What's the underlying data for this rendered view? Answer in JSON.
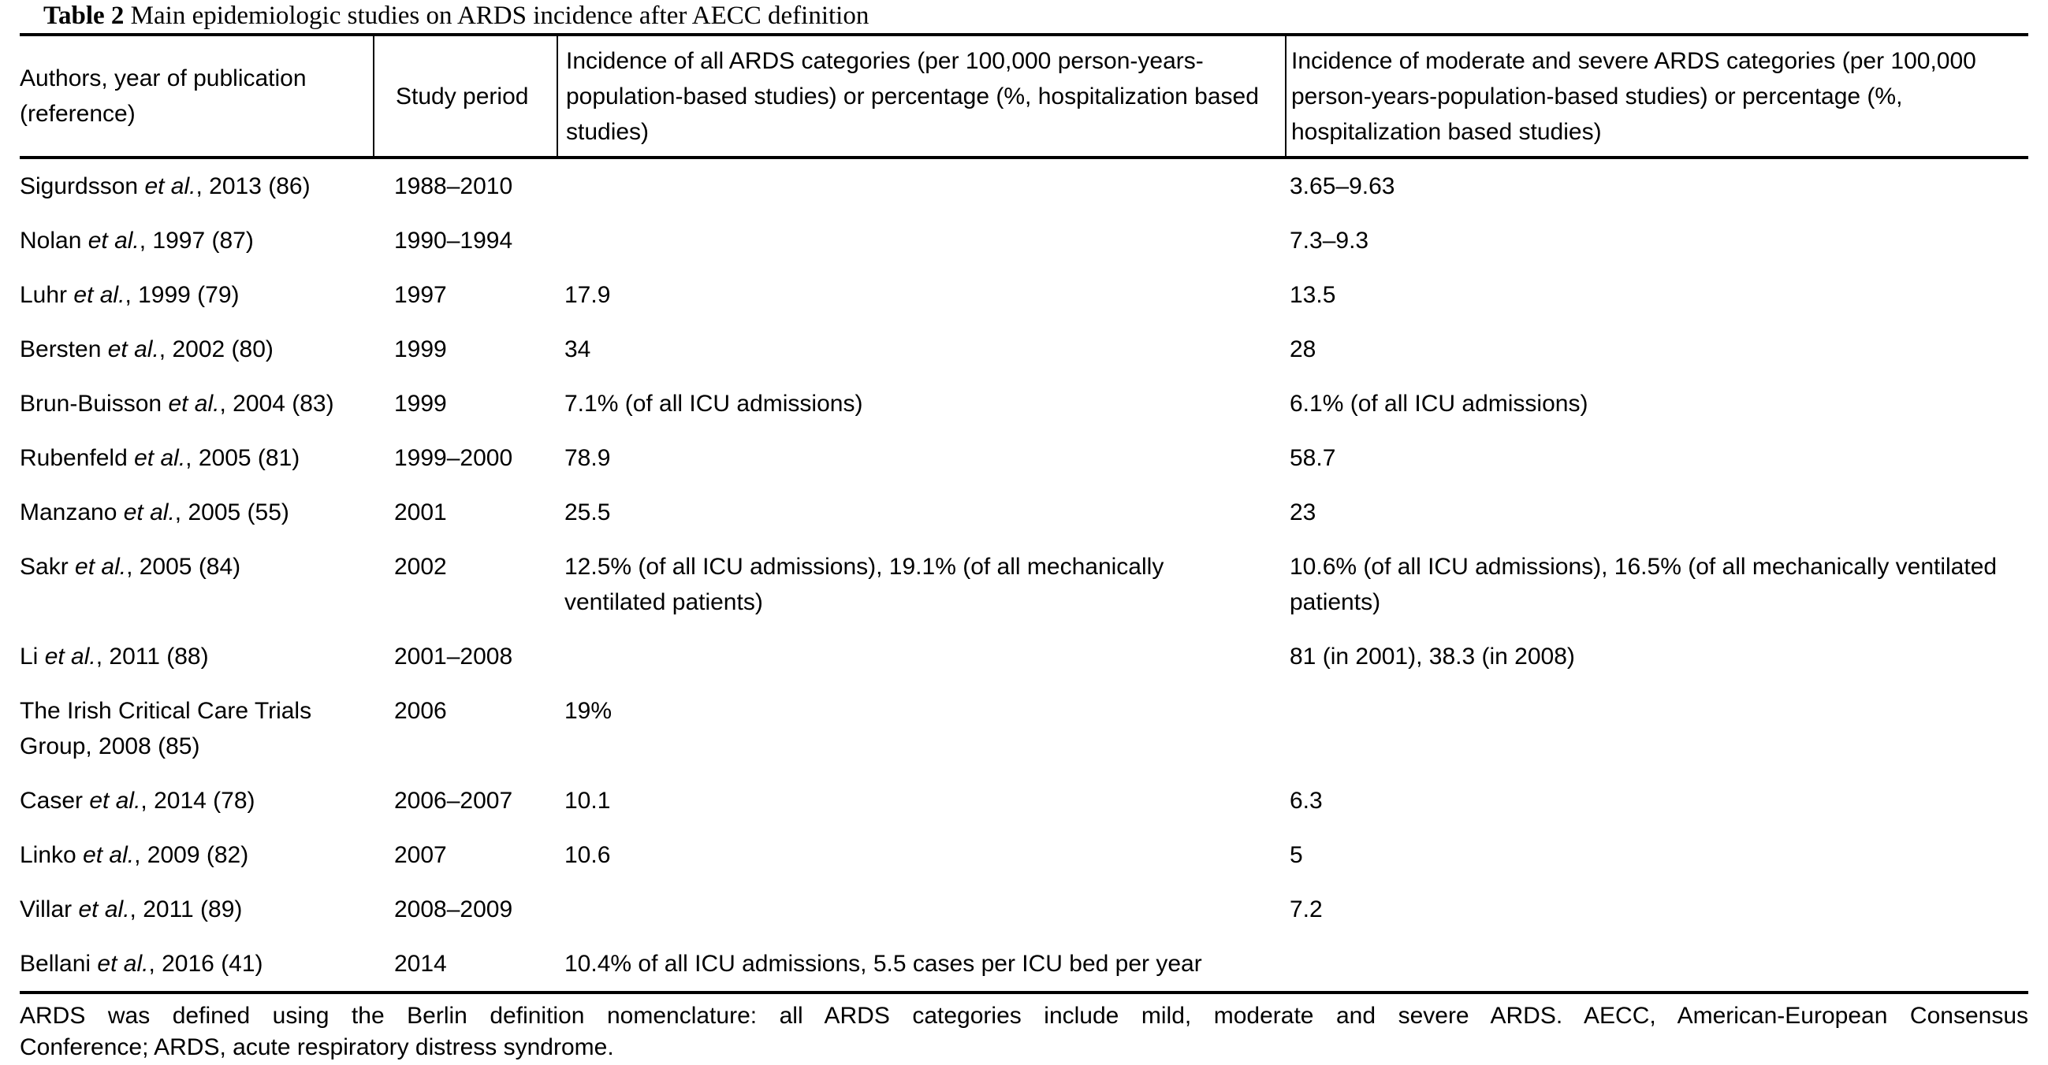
{
  "title": {
    "label": "Table 2",
    "text": " Main epidemiologic studies on ARDS incidence after AECC definition"
  },
  "table": {
    "columns": {
      "authors": "Authors, year of publication (reference)",
      "period": "Study period",
      "incidence_all": "Incidence of all ARDS categories (per 100,000 person-years-population-based studies) or percentage (%, hospitalization based studies)",
      "incidence_moderate_severe": "Incidence of moderate and severe ARDS categories (per 100,000 person-years-population-based studies) or percentage (%, hospitalization based studies)"
    },
    "rows": [
      {
        "author_pre": "Sigurdsson ",
        "author_italic": "et al.",
        "author_post": ", 2013 (86)",
        "period": "1988–2010",
        "incidence_all": "",
        "incidence_moderate_severe": "3.65–9.63"
      },
      {
        "author_pre": "Nolan ",
        "author_italic": "et al.",
        "author_post": ", 1997 (87)",
        "period": "1990–1994",
        "incidence_all": "",
        "incidence_moderate_severe": "7.3–9.3"
      },
      {
        "author_pre": "Luhr ",
        "author_italic": "et al.",
        "author_post": ", 1999 (79)",
        "period": "1997",
        "incidence_all": "17.9",
        "incidence_moderate_severe": "13.5"
      },
      {
        "author_pre": "Bersten ",
        "author_italic": "et al.",
        "author_post": ", 2002 (80)",
        "period": "1999",
        "incidence_all": "34",
        "incidence_moderate_severe": "28"
      },
      {
        "author_pre": "Brun-Buisson ",
        "author_italic": "et al.",
        "author_post": ", 2004 (83)",
        "period": "1999",
        "incidence_all": "7.1% (of all ICU admissions)",
        "incidence_moderate_severe": "6.1% (of all ICU admissions)"
      },
      {
        "author_pre": "Rubenfeld ",
        "author_italic": "et al.",
        "author_post": ", 2005 (81)",
        "period": "1999–2000",
        "incidence_all": "78.9",
        "incidence_moderate_severe": "58.7"
      },
      {
        "author_pre": "Manzano ",
        "author_italic": "et al.",
        "author_post": ", 2005 (55)",
        "period": "2001",
        "incidence_all": "25.5",
        "incidence_moderate_severe": "23"
      },
      {
        "author_pre": "Sakr ",
        "author_italic": "et al.",
        "author_post": ", 2005 (84)",
        "period": "2002",
        "incidence_all": "12.5% (of all ICU admissions), 19.1% (of all mechanically ventilated patients)",
        "incidence_moderate_severe": "10.6% (of all ICU admissions), 16.5% (of all mechanically ventilated patients)"
      },
      {
        "author_pre": "Li ",
        "author_italic": "et al.",
        "author_post": ", 2011 (88)",
        "period": "2001–2008",
        "incidence_all": "",
        "incidence_moderate_severe": "81 (in 2001), 38.3 (in 2008)"
      },
      {
        "author_pre": "The Irish Critical Care Trials Group, 2008 (85)",
        "author_italic": "",
        "author_post": "",
        "period": "2006",
        "incidence_all": "19%",
        "incidence_moderate_severe": ""
      },
      {
        "author_pre": "Caser ",
        "author_italic": "et al.",
        "author_post": ", 2014 (78)",
        "period": "2006–2007",
        "incidence_all": "10.1",
        "incidence_moderate_severe": "6.3"
      },
      {
        "author_pre": "Linko ",
        "author_italic": "et al.",
        "author_post": ", 2009 (82)",
        "period": "2007",
        "incidence_all": "10.6",
        "incidence_moderate_severe": "5"
      },
      {
        "author_pre": "Villar ",
        "author_italic": "et al.",
        "author_post": ", 2011 (89)",
        "period": "2008–2009",
        "incidence_all": "",
        "incidence_moderate_severe": "7.2"
      },
      {
        "author_pre": "Bellani ",
        "author_italic": "et al.",
        "author_post": ", 2016 (41)",
        "period": "2014",
        "incidence_all": "10.4% of all ICU admissions, 5.5 cases per ICU bed per year",
        "incidence_moderate_severe": ""
      }
    ]
  },
  "footnote": {
    "line1": "ARDS was defined using the Berlin definition nomenclature: all ARDS categories include mild, moderate and severe ARDS. AECC, American-European Consensus",
    "line2": "Conference; ARDS, acute respiratory distress syndrome."
  }
}
